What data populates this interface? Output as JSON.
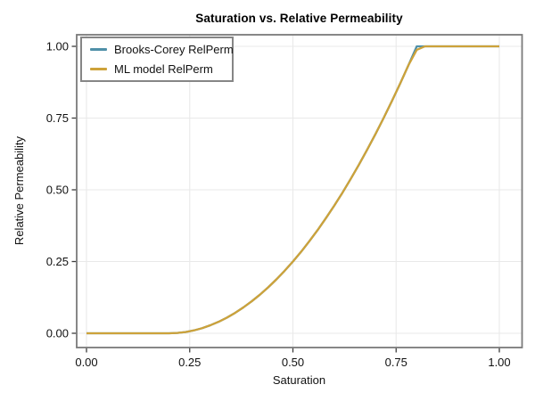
{
  "chart_data": {
    "type": "line",
    "title": "Saturation vs. Relative Permeability",
    "xlabel": "Saturation",
    "ylabel": "Relative Permeability",
    "xlim": [
      -0.024,
      1.055
    ],
    "ylim": [
      -0.05,
      1.042
    ],
    "grid": true,
    "legend_position": "top-left",
    "frame_color": "#7a7a7a",
    "grid_color": "#e9e9e9",
    "xticks": {
      "values": [
        0,
        0.25,
        0.5,
        0.75,
        1.0
      ],
      "labels": [
        "0.00",
        "0.25",
        "0.50",
        "0.75",
        "1.00"
      ]
    },
    "yticks": {
      "values": [
        0,
        0.25,
        0.5,
        0.75,
        1.0
      ],
      "labels": [
        "0.00",
        "0.25",
        "0.50",
        "0.75",
        "1.00"
      ]
    },
    "x": [
      0,
      0.02,
      0.04,
      0.06,
      0.08,
      0.1,
      0.12,
      0.14,
      0.16,
      0.18,
      0.2,
      0.22,
      0.24,
      0.26,
      0.28,
      0.3,
      0.32,
      0.34,
      0.36,
      0.38,
      0.4,
      0.42,
      0.44,
      0.46,
      0.48,
      0.5,
      0.52,
      0.54,
      0.56,
      0.58,
      0.6,
      0.62,
      0.64,
      0.66,
      0.68,
      0.7,
      0.72,
      0.74,
      0.76,
      0.78,
      0.8,
      0.82,
      0.84,
      0.86,
      0.88,
      0.9,
      0.92,
      0.94,
      0.96,
      0.98,
      1
    ],
    "series": [
      {
        "name": "Brooks-Corey RelPerm",
        "color": "#4f90a8",
        "values": [
          0,
          0,
          0,
          0,
          0,
          0,
          0,
          0,
          0,
          0,
          0,
          0.0011,
          0.0044,
          0.01,
          0.0178,
          0.0278,
          0.04,
          0.0544,
          0.0711,
          0.09,
          0.1111,
          0.1344,
          0.16,
          0.1878,
          0.2178,
          0.25,
          0.2844,
          0.3211,
          0.36,
          0.4011,
          0.4444,
          0.49,
          0.5378,
          0.5878,
          0.64,
          0.6944,
          0.7511,
          0.81,
          0.8711,
          0.9344,
          1,
          1,
          1,
          1,
          1,
          1,
          1,
          1,
          1,
          1,
          1
        ]
      },
      {
        "name": "ML model RelPerm",
        "color": "#cda23a",
        "values": [
          0,
          0,
          0,
          0,
          0,
          0,
          0,
          0,
          0,
          0,
          0,
          0.0011,
          0.0044,
          0.01,
          0.0178,
          0.0278,
          0.04,
          0.0544,
          0.0711,
          0.09,
          0.1111,
          0.1344,
          0.16,
          0.1878,
          0.2178,
          0.25,
          0.2844,
          0.3211,
          0.36,
          0.4011,
          0.4444,
          0.49,
          0.5378,
          0.5878,
          0.64,
          0.6944,
          0.7511,
          0.81,
          0.8711,
          0.9344,
          0.988,
          1,
          1,
          1,
          1,
          1,
          1,
          1,
          1,
          1,
          1
        ]
      }
    ]
  }
}
